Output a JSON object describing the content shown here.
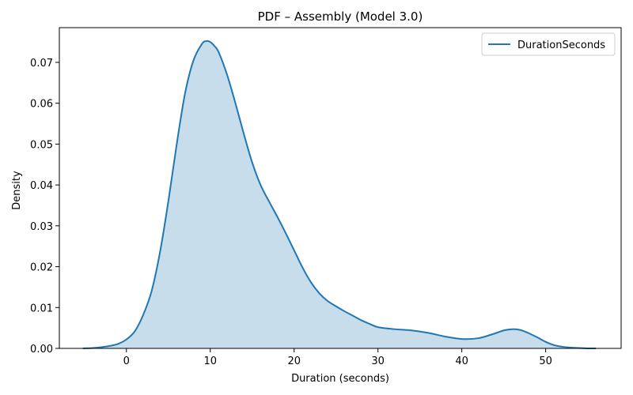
{
  "chart_data": {
    "type": "area",
    "title": "PDF – Assembly (Model 3.0)",
    "xlabel": "Duration (seconds)",
    "ylabel": "Density",
    "xlim": [
      -8,
      59
    ],
    "ylim": [
      0,
      0.0785
    ],
    "xticks": [
      0,
      10,
      20,
      30,
      40,
      50
    ],
    "yticks": [
      0.0,
      0.01,
      0.02,
      0.03,
      0.04,
      0.05,
      0.06,
      0.07
    ],
    "ytick_labels": [
      "0.00",
      "0.01",
      "0.02",
      "0.03",
      "0.04",
      "0.05",
      "0.06",
      "0.07"
    ],
    "grid": false,
    "legend": {
      "placement": "top-right",
      "entries": [
        "DurationSeconds"
      ]
    },
    "colors": {
      "line": "#1f77b4",
      "fill": "#1f77b4",
      "fill_opacity": 0.25
    },
    "series": [
      {
        "name": "DurationSeconds",
        "x": [
          -5.2,
          -4,
          -3,
          -2,
          -1,
          0,
          1,
          2,
          3,
          4,
          5,
          6,
          7,
          8,
          9,
          9.5,
          10,
          10.5,
          11,
          12,
          13,
          14,
          15,
          16,
          17,
          18,
          19,
          20,
          21,
          22,
          23,
          24,
          25,
          26,
          27,
          28,
          29,
          30,
          32,
          34,
          36,
          38,
          40,
          42,
          44,
          45,
          46,
          47,
          48,
          49,
          50,
          51,
          52,
          53,
          54,
          55,
          56
        ],
        "y": [
          0.0,
          0.0001,
          0.0003,
          0.0006,
          0.0011,
          0.0022,
          0.0042,
          0.0082,
          0.014,
          0.0235,
          0.036,
          0.05,
          0.0625,
          0.0705,
          0.0745,
          0.0752,
          0.075,
          0.074,
          0.0725,
          0.067,
          0.06,
          0.0525,
          0.0455,
          0.04,
          0.036,
          0.0322,
          0.0282,
          0.024,
          0.0198,
          0.0162,
          0.0135,
          0.0116,
          0.0103,
          0.0091,
          0.008,
          0.0069,
          0.006,
          0.0052,
          0.0047,
          0.0044,
          0.0038,
          0.0029,
          0.0023,
          0.0025,
          0.0037,
          0.0044,
          0.0047,
          0.0045,
          0.0037,
          0.0027,
          0.0016,
          0.0008,
          0.0004,
          0.0002,
          0.0001,
          0.0,
          0.0
        ]
      }
    ]
  }
}
